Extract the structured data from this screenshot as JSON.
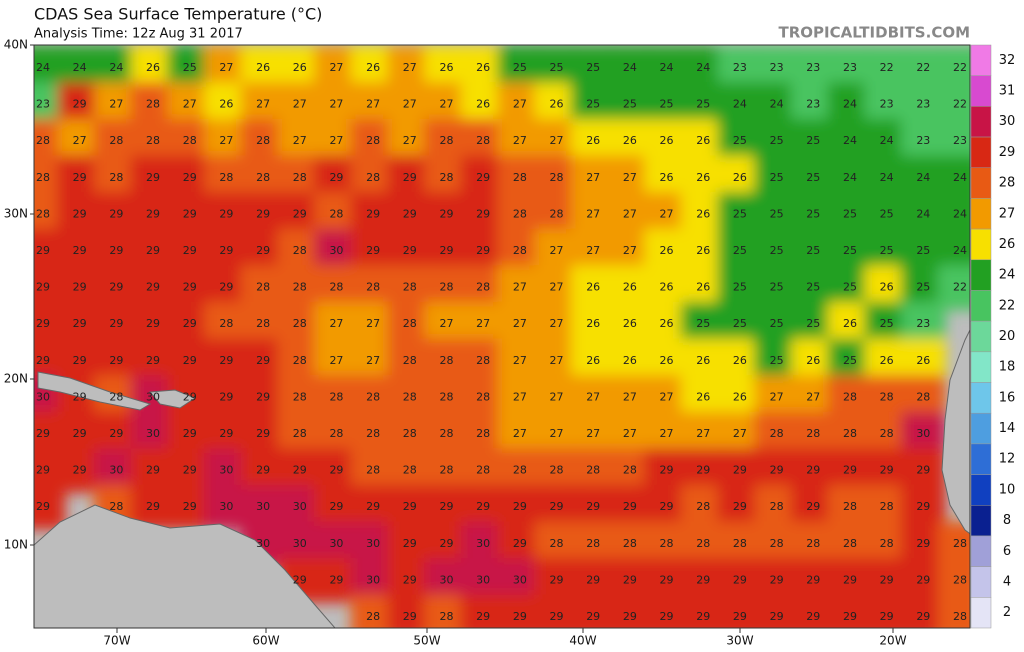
{
  "header": {
    "title": "CDAS Sea Surface Temperature (°C)",
    "subtitle": "Analysis Time: 12z Aug 31 2017",
    "source": "TROPICALTIDBITS.COM"
  },
  "lat_labels": [
    "40N",
    "30N",
    "20N",
    "10N"
  ],
  "lon_labels": [
    "70W",
    "60W",
    "50W",
    "40W",
    "30W",
    "20W"
  ],
  "colorbar": {
    "levels": [
      32,
      31,
      30,
      29,
      28,
      27,
      26,
      24,
      22,
      20,
      18,
      16,
      14,
      12,
      10,
      8,
      6,
      4,
      2
    ],
    "colors": [
      "#f07ae6",
      "#d84ad0",
      "#c81446",
      "#d82814",
      "#e85a14",
      "#f29a00",
      "#f7e000",
      "#22a022",
      "#48c460",
      "#6cd89a",
      "#82e6c8",
      "#6ec6ea",
      "#4e9ee0",
      "#2e6ed6",
      "#1040c0",
      "#0a2090",
      "#a0a0d8",
      "#c4c4ea",
      "#e4e4f6"
    ]
  },
  "grid": [
    [
      24,
      24,
      24,
      26,
      25,
      27,
      26,
      26,
      27,
      26,
      27,
      26,
      26,
      25,
      25,
      25,
      24,
      24,
      24,
      23,
      23,
      23,
      23,
      22,
      22,
      22
    ],
    [
      23,
      29,
      27,
      28,
      27,
      26,
      27,
      27,
      27,
      27,
      27,
      27,
      26,
      27,
      26,
      25,
      25,
      25,
      25,
      24,
      24,
      23,
      24,
      23,
      23,
      22
    ],
    [
      28,
      27,
      28,
      28,
      28,
      27,
      28,
      27,
      27,
      28,
      27,
      28,
      28,
      27,
      27,
      26,
      26,
      26,
      26,
      25,
      25,
      25,
      24,
      24,
      23,
      23
    ],
    [
      28,
      29,
      28,
      29,
      29,
      28,
      28,
      28,
      29,
      28,
      29,
      28,
      29,
      28,
      28,
      27,
      27,
      26,
      26,
      26,
      25,
      25,
      24,
      24,
      24,
      24
    ],
    [
      28,
      29,
      29,
      29,
      29,
      29,
      29,
      29,
      28,
      29,
      29,
      29,
      29,
      28,
      28,
      27,
      27,
      27,
      26,
      25,
      25,
      25,
      25,
      25,
      24,
      24
    ],
    [
      29,
      29,
      29,
      29,
      29,
      29,
      29,
      28,
      30,
      29,
      29,
      29,
      29,
      28,
      27,
      27,
      27,
      26,
      26,
      25,
      25,
      25,
      25,
      25,
      25,
      24
    ],
    [
      29,
      29,
      29,
      29,
      29,
      29,
      28,
      28,
      28,
      28,
      28,
      28,
      28,
      27,
      27,
      26,
      26,
      26,
      26,
      25,
      25,
      25,
      25,
      26,
      25,
      22
    ],
    [
      29,
      29,
      29,
      29,
      29,
      28,
      28,
      28,
      27,
      27,
      28,
      27,
      27,
      27,
      27,
      26,
      26,
      26,
      25,
      25,
      25,
      25,
      26,
      25,
      23,
      null
    ],
    [
      29,
      29,
      29,
      29,
      29,
      29,
      29,
      28,
      27,
      27,
      28,
      28,
      28,
      27,
      27,
      26,
      26,
      26,
      26,
      26,
      25,
      26,
      25,
      26,
      26,
      null
    ],
    [
      30,
      29,
      28,
      30,
      29,
      29,
      29,
      28,
      28,
      28,
      28,
      28,
      28,
      27,
      27,
      27,
      27,
      27,
      26,
      26,
      27,
      27,
      28,
      28,
      28,
      null
    ],
    [
      29,
      29,
      29,
      30,
      29,
      29,
      29,
      28,
      28,
      28,
      28,
      28,
      28,
      27,
      27,
      27,
      27,
      27,
      27,
      27,
      28,
      28,
      28,
      28,
      30,
      null
    ],
    [
      29,
      29,
      30,
      29,
      29,
      30,
      29,
      29,
      29,
      28,
      28,
      28,
      28,
      28,
      28,
      28,
      28,
      29,
      29,
      29,
      29,
      29,
      29,
      29,
      29,
      null
    ],
    [
      29,
      null,
      28,
      29,
      29,
      30,
      30,
      30,
      29,
      29,
      29,
      29,
      29,
      29,
      29,
      29,
      29,
      29,
      28,
      29,
      28,
      29,
      28,
      28,
      29,
      null
    ],
    [
      null,
      null,
      null,
      null,
      null,
      null,
      30,
      30,
      30,
      30,
      29,
      29,
      30,
      29,
      28,
      28,
      28,
      28,
      28,
      28,
      28,
      28,
      28,
      28,
      29,
      28
    ],
    [
      null,
      null,
      null,
      null,
      null,
      null,
      null,
      29,
      29,
      30,
      29,
      30,
      30,
      30,
      29,
      29,
      29,
      29,
      29,
      29,
      29,
      29,
      29,
      29,
      29,
      28
    ],
    [
      null,
      null,
      null,
      null,
      null,
      null,
      null,
      null,
      null,
      28,
      29,
      28,
      29,
      29,
      29,
      29,
      29,
      29,
      29,
      29,
      29,
      29,
      29,
      29,
      29,
      28
    ]
  ]
}
